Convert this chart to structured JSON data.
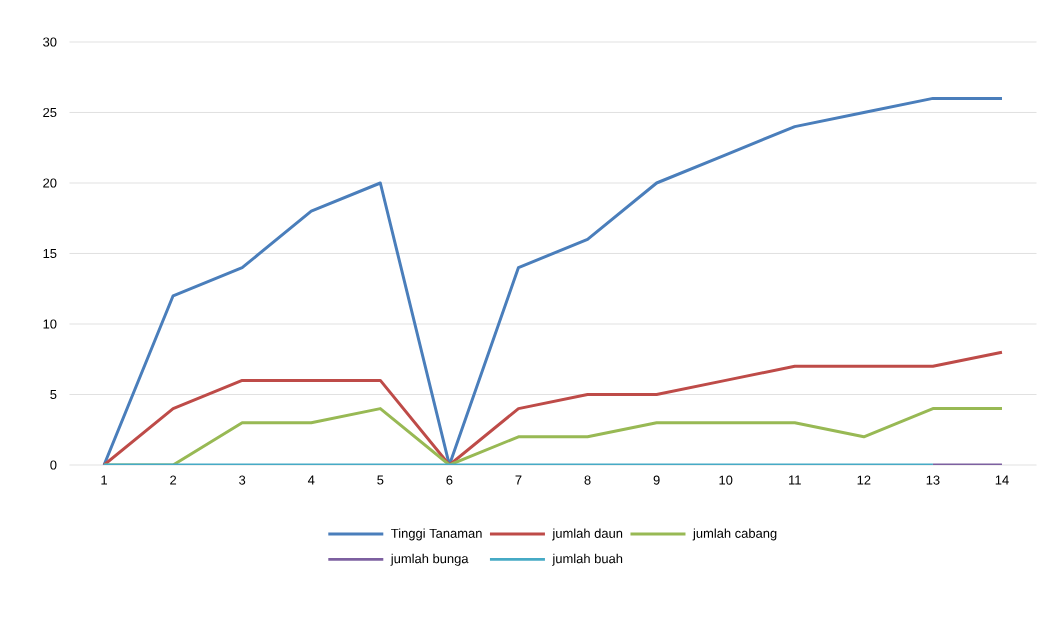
{
  "chart_data": {
    "type": "line",
    "categories": [
      "1",
      "2",
      "3",
      "4",
      "5",
      "6",
      "7",
      "8",
      "9",
      "10",
      "11",
      "12",
      "13",
      "14"
    ],
    "series": [
      {
        "name": "Tinggi Tanaman",
        "color": "#4a7ebb",
        "values": [
          0,
          12,
          14,
          18,
          20,
          0,
          14,
          16,
          20,
          22,
          24,
          25,
          26,
          26
        ]
      },
      {
        "name": "jumlah daun",
        "color": "#be4b48",
        "values": [
          0,
          4,
          6,
          6,
          6,
          0,
          4,
          5,
          5,
          6,
          7,
          7,
          7,
          8
        ]
      },
      {
        "name": "jumlah cabang",
        "color": "#98b954",
        "values": [
          0,
          0,
          3,
          3,
          4,
          0,
          2,
          2,
          3,
          3,
          3,
          2,
          4,
          4
        ]
      },
      {
        "name": "jumlah bunga",
        "color": "#7d60a0",
        "values": [
          null,
          null,
          null,
          null,
          null,
          null,
          null,
          null,
          null,
          null,
          null,
          null,
          0,
          0
        ]
      },
      {
        "name": "jumlah buah",
        "color": "#46aac5",
        "values": [
          0,
          0,
          0,
          0,
          0,
          0,
          0,
          0,
          0,
          0,
          0,
          0,
          0,
          null
        ]
      }
    ],
    "ylim": [
      0,
      30
    ],
    "yticks": [
      0,
      5,
      10,
      15,
      20,
      25,
      30
    ],
    "grid": "y",
    "legend": "bottom",
    "marker": "none",
    "line_style": "solid"
  }
}
